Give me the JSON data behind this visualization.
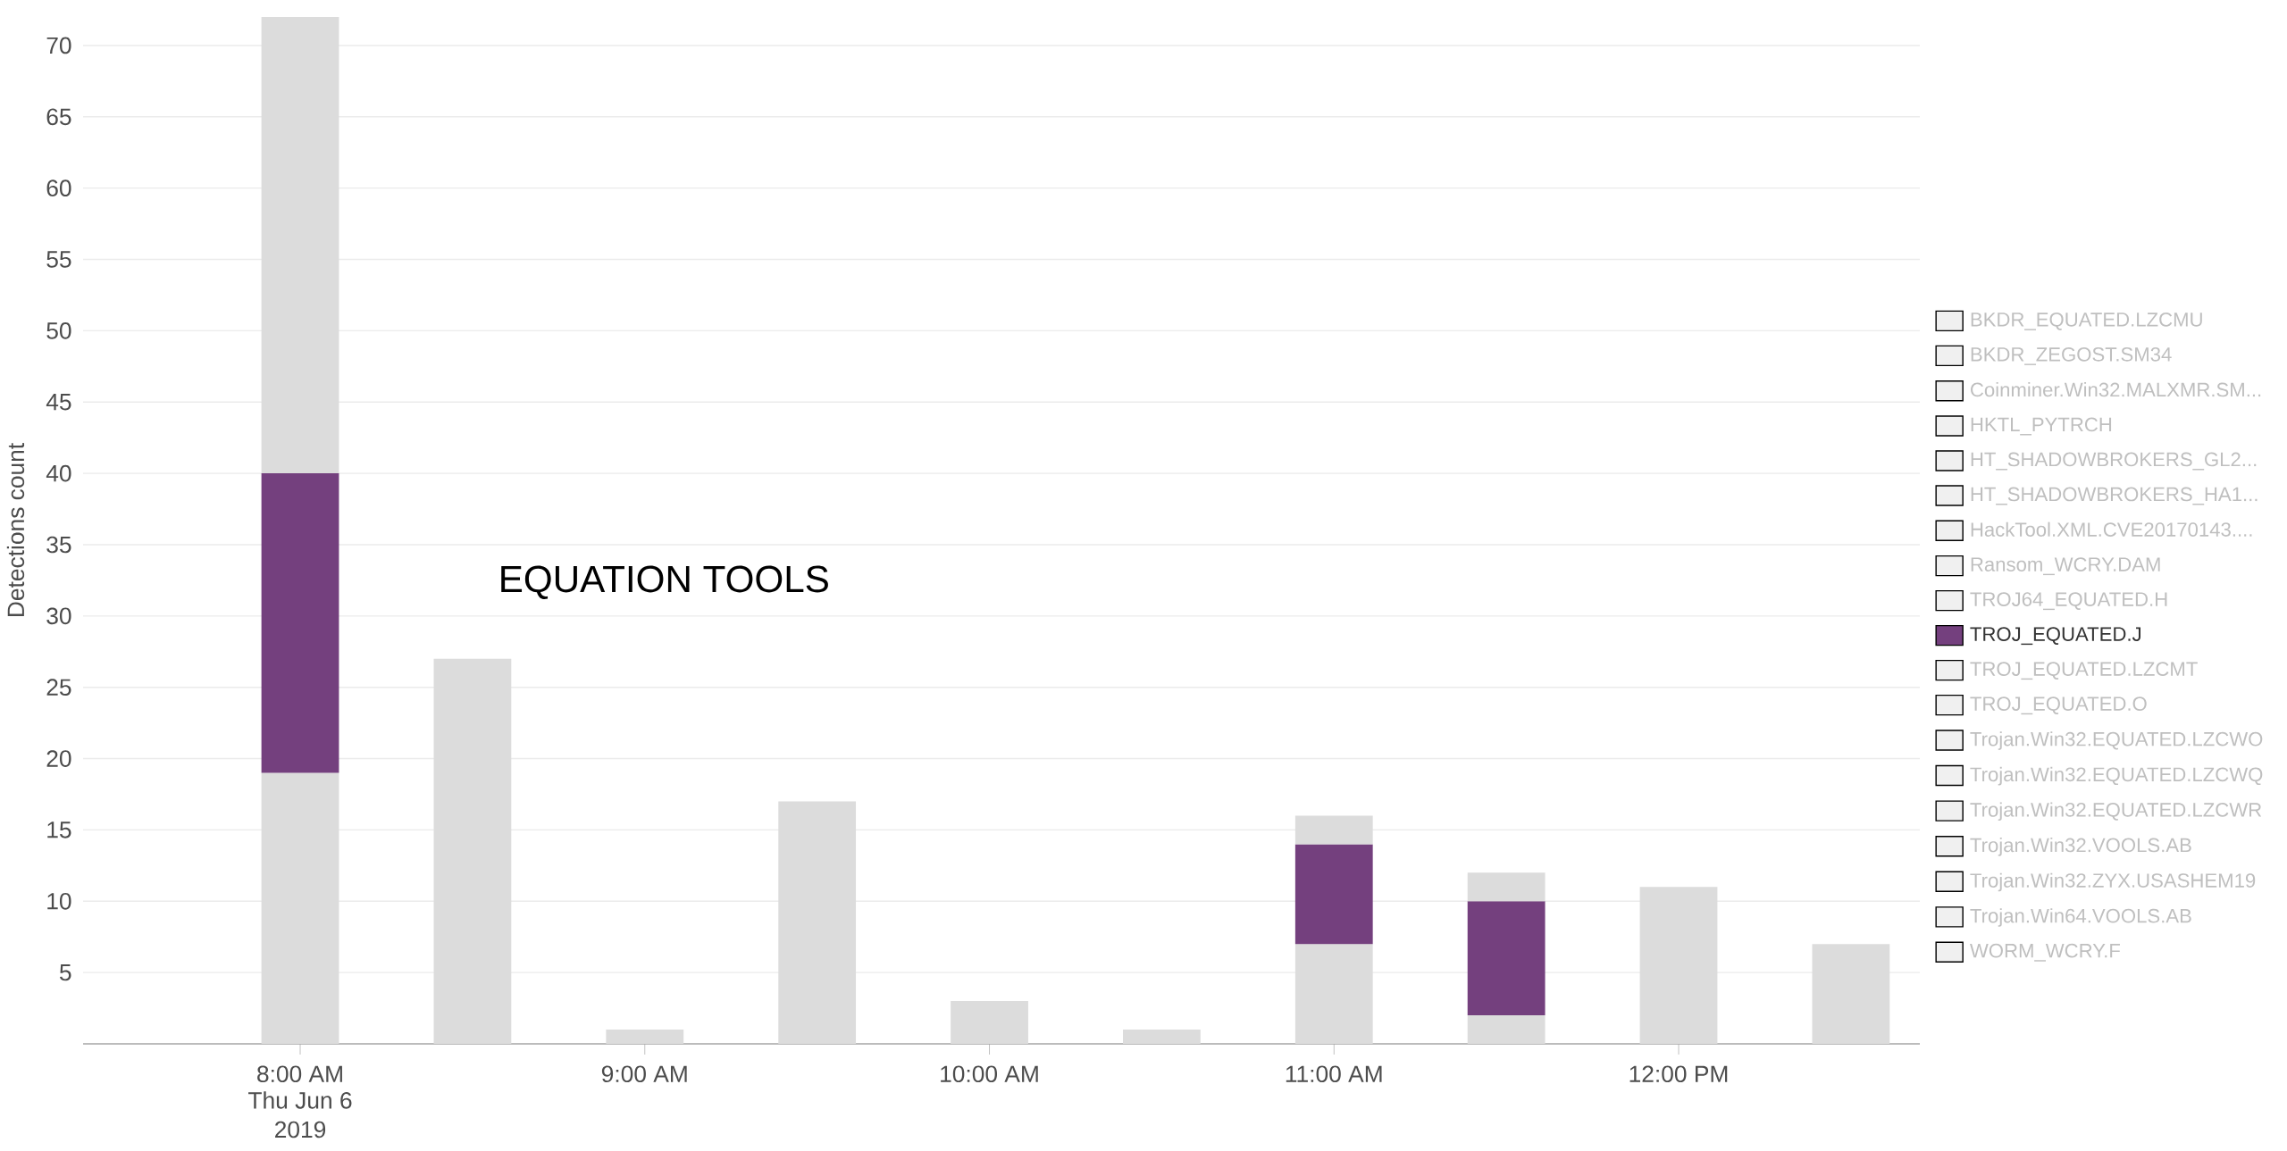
{
  "chart_data": {
    "type": "bar",
    "stacked": true,
    "ylabel": "Detections count",
    "x": [
      8,
      8.5,
      9,
      9.5,
      10,
      10.5,
      11,
      11.5,
      12,
      12.5
    ],
    "xlim": [
      7.37,
      12.7
    ],
    "xticks": [
      {
        "value": 8,
        "label": "8:00 AM"
      },
      {
        "value": 9,
        "label": "9:00 AM"
      },
      {
        "value": 10,
        "label": "10:00 AM"
      },
      {
        "value": 11,
        "label": "11:00 AM"
      },
      {
        "value": 12,
        "label": "12:00 PM"
      }
    ],
    "ylim": [
      0,
      72
    ],
    "yticks": [
      5,
      10,
      15,
      20,
      25,
      30,
      35,
      40,
      45,
      50,
      55,
      60,
      65,
      70
    ],
    "grid": "y",
    "legend": "right",
    "annotations": [
      "EQUATION TOOLS",
      "Thu Jun 6",
      "2019"
    ],
    "series": [
      {
        "color": "#dcdcdc",
        "values": [
          19,
          27,
          1,
          17,
          3,
          1,
          7,
          2,
          11,
          7
        ]
      },
      {
        "name": "BKDR_EQUATED.LZCMU",
        "color": "#f0f0f0",
        "values": [
          null,
          null,
          null,
          null,
          null,
          null,
          null,
          null,
          null,
          null
        ]
      },
      {
        "name": "BKDR_ZEGOST.SM34",
        "color": "#f0f0f0",
        "values": [
          null,
          null,
          null,
          null,
          null,
          null,
          null,
          null,
          null,
          null
        ]
      },
      {
        "name": "Coinminer.Win32.MALXMR.SM...",
        "color": "#f0f0f0",
        "values": [
          null,
          null,
          null,
          null,
          null,
          null,
          null,
          null,
          null,
          null
        ]
      },
      {
        "name": "HKTL_PYTRCH",
        "color": "#f0f0f0",
        "values": [
          null,
          null,
          null,
          null,
          null,
          null,
          null,
          null,
          null,
          null
        ]
      },
      {
        "name": "HT_SHADOWBROKERS_GL2...",
        "color": "#f0f0f0",
        "values": [
          null,
          null,
          null,
          null,
          null,
          null,
          null,
          null,
          null,
          null
        ]
      },
      {
        "name": "HT_SHADOWBROKERS_HA1...",
        "color": "#f0f0f0",
        "values": [
          null,
          null,
          null,
          null,
          null,
          null,
          null,
          null,
          null,
          null
        ]
      },
      {
        "name": "HackTool.XML.CVE20170143....",
        "color": "#f0f0f0",
        "values": [
          null,
          null,
          null,
          null,
          null,
          null,
          null,
          null,
          null,
          null
        ]
      },
      {
        "name": "Ransom_WCRY.DAM",
        "color": "#f0f0f0",
        "values": [
          null,
          null,
          null,
          null,
          null,
          null,
          null,
          null,
          null,
          null
        ]
      },
      {
        "name": "TROJ64_EQUATED.H",
        "color": "#f0f0f0",
        "values": [
          null,
          null,
          null,
          null,
          null,
          null,
          null,
          null,
          null,
          null
        ]
      },
      {
        "name": "TROJ_EQUATED.J",
        "color": "#74407e",
        "values": [
          21,
          null,
          null,
          null,
          null,
          null,
          7,
          8,
          null,
          null
        ]
      },
      {
        "name": "TROJ_EQUATED.LZCMT",
        "color": "#f0f0f0",
        "values": [
          null,
          null,
          null,
          null,
          null,
          null,
          null,
          null,
          null,
          null
        ]
      },
      {
        "name": "TROJ_EQUATED.O",
        "color": "#f0f0f0",
        "values": [
          null,
          null,
          null,
          null,
          null,
          null,
          null,
          null,
          null,
          null
        ]
      },
      {
        "name": "Trojan.Win32.EQUATED.LZCWO",
        "color": "#f0f0f0",
        "values": [
          null,
          null,
          null,
          null,
          null,
          null,
          null,
          null,
          null,
          null
        ]
      },
      {
        "name": "Trojan.Win32.EQUATED.LZCWQ",
        "color": "#f0f0f0",
        "values": [
          null,
          null,
          null,
          null,
          null,
          null,
          null,
          null,
          null,
          null
        ]
      },
      {
        "name": "Trojan.Win32.EQUATED.LZCWR",
        "color": "#f0f0f0",
        "values": [
          null,
          null,
          null,
          null,
          null,
          null,
          null,
          null,
          null,
          null
        ]
      },
      {
        "name": "Trojan.Win32.VOOLS.AB",
        "color": "#f0f0f0",
        "values": [
          null,
          null,
          null,
          null,
          null,
          null,
          null,
          null,
          null,
          null
        ]
      },
      {
        "name": "Trojan.Win32.ZYX.USASHEM19",
        "color": "#f0f0f0",
        "values": [
          null,
          null,
          null,
          null,
          null,
          null,
          null,
          null,
          null,
          null
        ]
      },
      {
        "name": "Trojan.Win64.VOOLS.AB",
        "color": "#f0f0f0",
        "values": [
          null,
          null,
          null,
          null,
          null,
          null,
          null,
          null,
          null,
          null
        ]
      },
      {
        "name": "WORM_WCRY.F",
        "color": "#f0f0f0",
        "values": [
          null,
          null,
          null,
          null,
          null,
          null,
          null,
          null,
          null,
          null
        ]
      },
      {
        "color": "#dcdcdc",
        "values": [
          32,
          null,
          null,
          null,
          null,
          null,
          2,
          2,
          null,
          null
        ]
      }
    ]
  }
}
